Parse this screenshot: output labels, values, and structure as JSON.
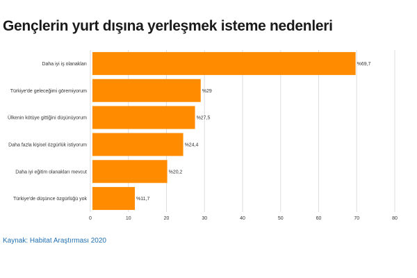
{
  "title": "Gençlerin yurt dışına yerleşmek isteme nedenleri",
  "source": "Kaynak: Habitat Araştırması 2020",
  "colors": {
    "bar": "#ff8c00",
    "grid": "#dddddd",
    "source": "#1f6fb2"
  },
  "chart_data": {
    "type": "bar",
    "orientation": "horizontal",
    "categories": [
      "Daha iyi iş olanakları",
      "Türkiye'de geleceğimi göremiyorum",
      "Ülkenin kötüye gittiğini düşünüyorum",
      "Daha fazla kişisel özgürlük istiyorum",
      "Daha iyi eğitim olanakları mevcut",
      "Türkiye'de düşünce özgürlüğü yok"
    ],
    "values": [
      69.7,
      29,
      27.5,
      24.4,
      20.2,
      11.7
    ],
    "value_labels": [
      "%69,7",
      "%29",
      "%27,5",
      "%24,4",
      "%20,2",
      "%11,7"
    ],
    "xlim": [
      0,
      80
    ],
    "xticks": [
      "0",
      "10",
      "20",
      "30",
      "40",
      "50",
      "60",
      "70",
      "80"
    ],
    "grid": true
  }
}
